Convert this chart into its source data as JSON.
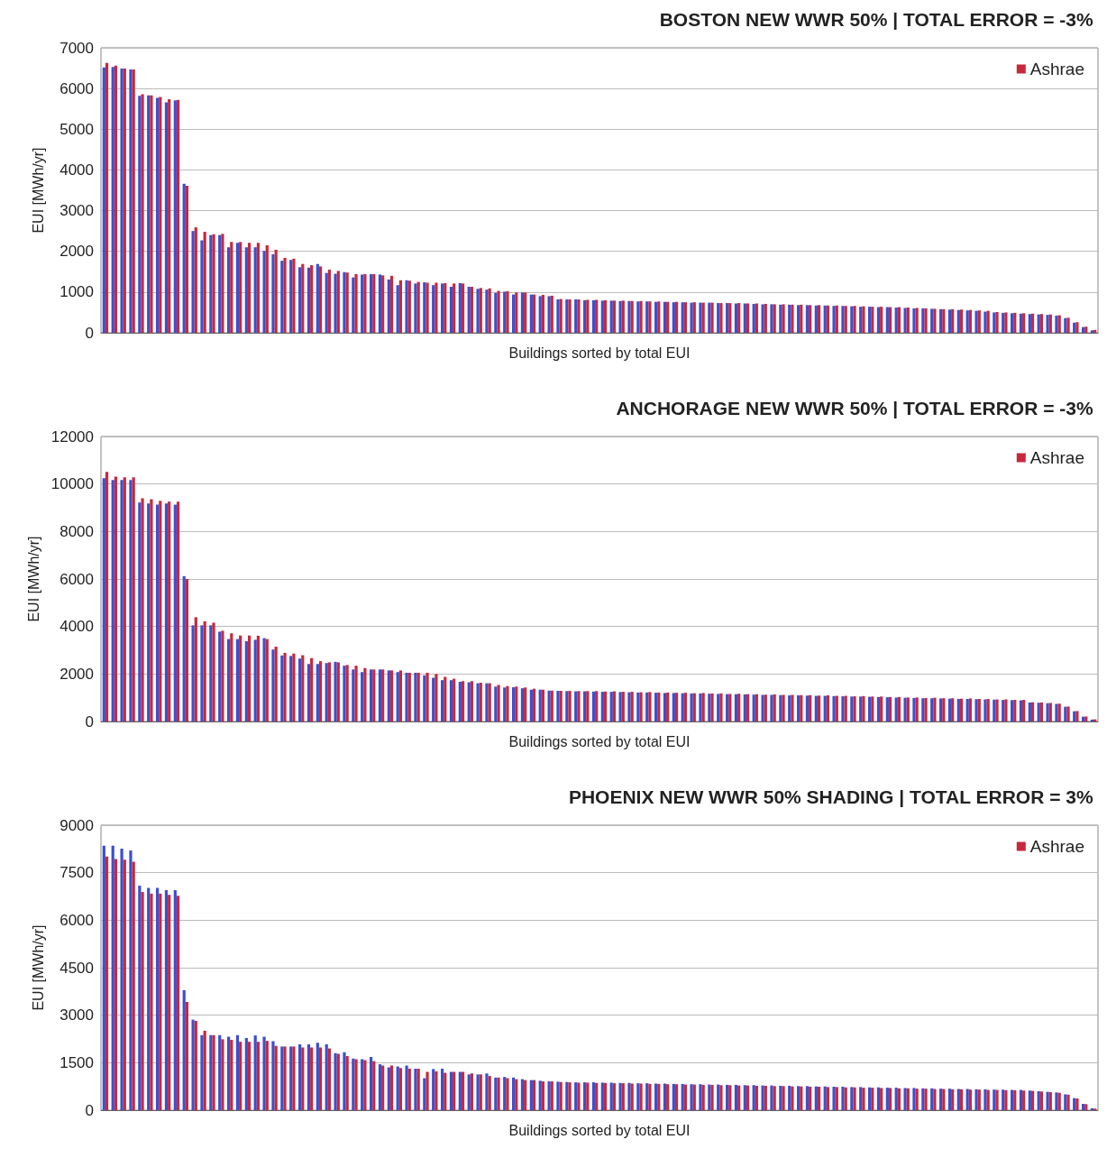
{
  "chart_data": [
    {
      "type": "bar",
      "title": "BOSTON NEW WWR 50% | TOTAL ERROR = -3%",
      "xlabel": "Buildings sorted by total EUI",
      "ylabel": "EUI [MWh/yr]",
      "ylim": [
        0,
        7000
      ],
      "yticks": [
        0,
        1000,
        2000,
        3000,
        4000,
        5000,
        6000,
        7000
      ],
      "grid": "y",
      "legend": "top right",
      "categories": [
        null,
        null,
        null,
        null,
        null,
        null,
        null,
        null,
        null,
        null,
        null,
        null,
        null,
        null,
        null,
        null,
        null,
        null,
        null,
        null,
        null,
        null,
        null,
        null,
        null,
        null,
        null,
        null,
        null,
        null,
        null,
        null,
        null,
        null,
        null,
        null,
        null,
        null,
        null,
        null,
        null,
        null,
        null,
        null,
        null,
        null,
        null,
        null,
        null,
        null,
        null,
        null,
        null,
        null,
        null,
        null,
        null,
        null,
        null,
        null,
        null,
        null,
        null,
        null,
        null,
        null,
        null,
        null,
        null,
        null,
        null,
        null,
        null,
        null,
        null,
        null,
        null,
        null,
        null,
        null,
        null,
        null,
        null,
        null,
        null,
        null,
        null,
        null,
        null,
        null,
        null,
        null,
        null,
        null,
        null,
        null,
        null,
        null,
        null,
        null,
        null,
        null,
        null,
        null,
        null,
        null,
        null,
        null,
        null,
        null,
        null,
        null
      ],
      "series": [
        {
          "color": "#3b4fd0",
          "values": [
            6520,
            6530,
            6490,
            6470,
            5820,
            5830,
            5770,
            5660,
            5710,
            3660,
            2500,
            2270,
            2400,
            2400,
            2100,
            2210,
            2100,
            2100,
            2010,
            1930,
            1770,
            1790,
            1610,
            1600,
            1690,
            1470,
            1450,
            1490,
            1360,
            1430,
            1440,
            1430,
            1310,
            1170,
            1290,
            1210,
            1240,
            1170,
            1210,
            1130,
            1220,
            1130,
            1080,
            1060,
            980,
            1010,
            940,
            990,
            940,
            900,
            900,
            820,
            820,
            820,
            800,
            800,
            790,
            790,
            780,
            780,
            770,
            770,
            760,
            760,
            750,
            750,
            740,
            740,
            740,
            730,
            730,
            720,
            720,
            710,
            700,
            700,
            690,
            690,
            680,
            680,
            670,
            670,
            660,
            660,
            650,
            640,
            640,
            630,
            630,
            620,
            610,
            600,
            600,
            590,
            580,
            570,
            560,
            550,
            540,
            520,
            500,
            490,
            480,
            470,
            460,
            450,
            440,
            420,
            360,
            250,
            140,
            60
          ]
        },
        {
          "name": "Ashrae",
          "color": "#c8283c",
          "values": [
            6630,
            6560,
            6490,
            6470,
            5860,
            5830,
            5790,
            5740,
            5720,
            3610,
            2590,
            2480,
            2420,
            2430,
            2230,
            2230,
            2210,
            2210,
            2150,
            2040,
            1840,
            1820,
            1690,
            1660,
            1630,
            1550,
            1520,
            1480,
            1440,
            1440,
            1440,
            1410,
            1400,
            1290,
            1280,
            1250,
            1230,
            1230,
            1220,
            1210,
            1210,
            1130,
            1100,
            1090,
            1030,
            1020,
            990,
            990,
            940,
            930,
            910,
            830,
            820,
            820,
            810,
            810,
            800,
            790,
            790,
            780,
            780,
            770,
            770,
            760,
            760,
            750,
            750,
            740,
            740,
            730,
            730,
            730,
            720,
            720,
            710,
            700,
            700,
            690,
            690,
            680,
            680,
            670,
            670,
            660,
            660,
            650,
            640,
            640,
            630,
            630,
            620,
            610,
            600,
            590,
            580,
            580,
            570,
            560,
            550,
            540,
            510,
            500,
            490,
            480,
            470,
            460,
            450,
            430,
            370,
            260,
            150,
            70
          ]
        }
      ]
    },
    {
      "type": "bar",
      "title": "ANCHORAGE NEW WWR 50% | TOTAL ERROR = -3%",
      "xlabel": "Buildings sorted by total EUI",
      "ylabel": "EUI [MWh/yr]",
      "ylim": [
        0,
        12000
      ],
      "yticks": [
        0,
        2000,
        4000,
        6000,
        8000,
        10000,
        12000
      ],
      "grid": "y",
      "legend": "top right",
      "categories": [
        null,
        null,
        null,
        null,
        null,
        null,
        null,
        null,
        null,
        null,
        null,
        null,
        null,
        null,
        null,
        null,
        null,
        null,
        null,
        null,
        null,
        null,
        null,
        null,
        null,
        null,
        null,
        null,
        null,
        null,
        null,
        null,
        null,
        null,
        null,
        null,
        null,
        null,
        null,
        null,
        null,
        null,
        null,
        null,
        null,
        null,
        null,
        null,
        null,
        null,
        null,
        null,
        null,
        null,
        null,
        null,
        null,
        null,
        null,
        null,
        null,
        null,
        null,
        null,
        null,
        null,
        null,
        null,
        null,
        null,
        null,
        null,
        null,
        null,
        null,
        null,
        null,
        null,
        null,
        null,
        null,
        null,
        null,
        null,
        null,
        null,
        null,
        null,
        null,
        null,
        null,
        null,
        null,
        null,
        null,
        null,
        null,
        null,
        null,
        null,
        null,
        null,
        null,
        null,
        null,
        null,
        null,
        null,
        null,
        null,
        null,
        null
      ],
      "series": [
        {
          "color": "#3b4fd0",
          "values": [
            10240,
            10170,
            10170,
            10170,
            9220,
            9180,
            9130,
            9180,
            9130,
            6120,
            4050,
            4050,
            4050,
            3780,
            3470,
            3470,
            3380,
            3440,
            3510,
            3030,
            2780,
            2760,
            2650,
            2420,
            2420,
            2460,
            2510,
            2350,
            2190,
            2080,
            2190,
            2190,
            2150,
            2080,
            2050,
            2050,
            1940,
            1840,
            1740,
            1740,
            1670,
            1650,
            1610,
            1610,
            1470,
            1430,
            1440,
            1400,
            1340,
            1340,
            1300,
            1290,
            1280,
            1270,
            1270,
            1260,
            1250,
            1250,
            1240,
            1230,
            1220,
            1220,
            1210,
            1200,
            1200,
            1190,
            1180,
            1180,
            1170,
            1160,
            1150,
            1150,
            1140,
            1130,
            1120,
            1120,
            1110,
            1100,
            1100,
            1090,
            1080,
            1080,
            1070,
            1060,
            1050,
            1050,
            1040,
            1030,
            1020,
            1010,
            1000,
            990,
            980,
            980,
            970,
            960,
            950,
            950,
            940,
            930,
            920,
            910,
            900,
            890,
            800,
            790,
            770,
            740,
            620,
            430,
            200,
            80
          ]
        },
        {
          "name": "Ashrae",
          "color": "#c8283c",
          "values": [
            10510,
            10310,
            10280,
            10280,
            9400,
            9360,
            9290,
            9260,
            9260,
            6000,
            4390,
            4220,
            4160,
            3820,
            3710,
            3620,
            3620,
            3610,
            3470,
            3150,
            2890,
            2860,
            2790,
            2670,
            2540,
            2490,
            2490,
            2380,
            2350,
            2250,
            2190,
            2190,
            2150,
            2150,
            2050,
            2050,
            2050,
            2000,
            1880,
            1800,
            1700,
            1700,
            1630,
            1610,
            1540,
            1490,
            1470,
            1430,
            1380,
            1340,
            1300,
            1290,
            1290,
            1280,
            1280,
            1280,
            1260,
            1270,
            1250,
            1250,
            1230,
            1240,
            1220,
            1220,
            1210,
            1210,
            1190,
            1200,
            1180,
            1180,
            1160,
            1170,
            1150,
            1150,
            1130,
            1140,
            1120,
            1120,
            1110,
            1110,
            1090,
            1100,
            1080,
            1080,
            1060,
            1070,
            1050,
            1050,
            1030,
            1030,
            1010,
            1010,
            990,
            1000,
            980,
            980,
            960,
            970,
            950,
            950,
            930,
            930,
            910,
            910,
            810,
            800,
            780,
            750,
            630,
            440,
            210,
            90
          ]
        }
      ]
    },
    {
      "type": "bar",
      "title": "PHOENIX NEW WWR 50% SHADING | TOTAL ERROR = 3%",
      "xlabel": "Buildings sorted by total EUI",
      "ylabel": "EUI [MWh/yr]",
      "ylim": [
        0,
        9000
      ],
      "yticks": [
        0,
        1500,
        3000,
        4500,
        6000,
        7500,
        9000
      ],
      "grid": "y",
      "legend": "top right",
      "categories": [
        null,
        null,
        null,
        null,
        null,
        null,
        null,
        null,
        null,
        null,
        null,
        null,
        null,
        null,
        null,
        null,
        null,
        null,
        null,
        null,
        null,
        null,
        null,
        null,
        null,
        null,
        null,
        null,
        null,
        null,
        null,
        null,
        null,
        null,
        null,
        null,
        null,
        null,
        null,
        null,
        null,
        null,
        null,
        null,
        null,
        null,
        null,
        null,
        null,
        null,
        null,
        null,
        null,
        null,
        null,
        null,
        null,
        null,
        null,
        null,
        null,
        null,
        null,
        null,
        null,
        null,
        null,
        null,
        null,
        null,
        null,
        null,
        null,
        null,
        null,
        null,
        null,
        null,
        null,
        null,
        null,
        null,
        null,
        null,
        null,
        null,
        null,
        null,
        null,
        null,
        null,
        null,
        null,
        null,
        null,
        null,
        null,
        null,
        null,
        null,
        null,
        null,
        null,
        null,
        null,
        null,
        null,
        null,
        null,
        null,
        null,
        null
      ],
      "series": [
        {
          "color": "#3b4fd0",
          "values": [
            8350,
            8350,
            8260,
            8200,
            7090,
            7020,
            7020,
            6950,
            6950,
            3790,
            2860,
            2370,
            2370,
            2370,
            2320,
            2370,
            2280,
            2360,
            2320,
            2180,
            2010,
            2010,
            2080,
            2080,
            2130,
            2080,
            1800,
            1830,
            1630,
            1610,
            1680,
            1450,
            1350,
            1380,
            1410,
            1310,
            1010,
            1300,
            1310,
            1210,
            1210,
            1130,
            1130,
            1160,
            1030,
            1050,
            1030,
            980,
            950,
            930,
            910,
            900,
            890,
            880,
            880,
            880,
            870,
            870,
            860,
            860,
            850,
            850,
            840,
            840,
            830,
            830,
            820,
            820,
            810,
            810,
            800,
            800,
            790,
            790,
            780,
            780,
            770,
            770,
            760,
            760,
            750,
            750,
            740,
            740,
            730,
            730,
            720,
            720,
            710,
            710,
            700,
            700,
            690,
            690,
            680,
            680,
            670,
            670,
            660,
            660,
            650,
            650,
            640,
            640,
            620,
            600,
            580,
            560,
            500,
            380,
            200,
            60
          ]
        },
        {
          "name": "Ashrae",
          "color": "#c8283c",
          "values": [
            8010,
            7930,
            7910,
            7850,
            6890,
            6840,
            6840,
            6800,
            6770,
            3420,
            2820,
            2510,
            2370,
            2240,
            2220,
            2160,
            2160,
            2160,
            2190,
            2030,
            2010,
            2010,
            1980,
            1980,
            1980,
            1950,
            1780,
            1710,
            1610,
            1580,
            1550,
            1410,
            1410,
            1330,
            1310,
            1310,
            1210,
            1230,
            1180,
            1210,
            1210,
            1160,
            1130,
            1080,
            1030,
            1010,
            980,
            950,
            950,
            910,
            910,
            890,
            880,
            870,
            870,
            860,
            860,
            850,
            850,
            840,
            840,
            830,
            830,
            820,
            820,
            810,
            810,
            800,
            800,
            790,
            790,
            780,
            780,
            770,
            770,
            760,
            760,
            750,
            750,
            740,
            740,
            730,
            730,
            720,
            720,
            710,
            710,
            700,
            700,
            690,
            690,
            680,
            680,
            670,
            670,
            660,
            660,
            650,
            650,
            640,
            640,
            630,
            630,
            620,
            610,
            590,
            570,
            550,
            490,
            370,
            190,
            50
          ]
        }
      ]
    }
  ]
}
